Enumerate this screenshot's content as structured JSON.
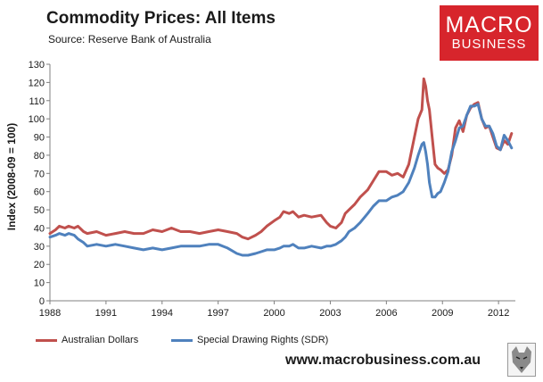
{
  "header": {
    "title": "Commodity Prices: All Items",
    "subtitle": "Source: Reserve Bank of Australia"
  },
  "logo": {
    "line1": "MACRO",
    "line2": "BUSINESS",
    "color": "#d7252c"
  },
  "website": "www.macrobusiness.com.au",
  "chart_data": {
    "type": "line",
    "title": "Commodity Prices: All Items",
    "ylabel": "Index (2008-09 = 100)",
    "xlabel": "",
    "ylim": [
      0,
      130
    ],
    "xlim": [
      1988,
      2012.9
    ],
    "yticks": [
      0,
      10,
      20,
      30,
      40,
      50,
      60,
      70,
      80,
      90,
      100,
      110,
      120,
      130
    ],
    "xticks": [
      1988,
      1991,
      1994,
      1997,
      2000,
      2003,
      2006,
      2009,
      2012
    ],
    "xtick_labels": [
      "1988",
      "1991",
      "1994",
      "1997",
      "2000",
      "2003",
      "2006",
      "2009",
      "2012"
    ],
    "grid": false,
    "legend_position": "bottom",
    "series": [
      {
        "name": "Australian Dollars",
        "color": "#c0504d",
        "x": [
          1988.0,
          1988.3,
          1988.5,
          1988.8,
          1989.0,
          1989.3,
          1989.5,
          1989.8,
          1990.0,
          1990.5,
          1991.0,
          1991.5,
          1992.0,
          1992.5,
          1993.0,
          1993.5,
          1994.0,
          1994.5,
          1995.0,
          1995.5,
          1996.0,
          1996.5,
          1997.0,
          1997.5,
          1998.0,
          1998.3,
          1998.6,
          1999.0,
          1999.3,
          1999.6,
          2000.0,
          2000.3,
          2000.5,
          2000.8,
          2001.0,
          2001.3,
          2001.6,
          2002.0,
          2002.5,
          2002.8,
          2003.0,
          2003.3,
          2003.6,
          2003.8,
          2004.0,
          2004.3,
          2004.6,
          2005.0,
          2005.3,
          2005.6,
          2006.0,
          2006.3,
          2006.6,
          2006.9,
          2007.2,
          2007.5,
          2007.7,
          2007.9,
          2008.0,
          2008.1,
          2008.2,
          2008.3,
          2008.45,
          2008.6,
          2008.75,
          2008.9,
          2009.1,
          2009.3,
          2009.5,
          2009.7,
          2009.9,
          2010.1,
          2010.3,
          2010.5,
          2010.7,
          2010.9,
          2011.1,
          2011.3,
          2011.5,
          2011.7,
          2011.9,
          2012.1,
          2012.3,
          2012.5,
          2012.7
        ],
        "y": [
          37,
          39,
          41,
          40,
          41,
          40,
          41,
          38,
          37,
          38,
          36,
          37,
          38,
          37,
          37,
          39,
          38,
          40,
          38,
          38,
          37,
          38,
          39,
          38,
          37,
          35,
          34,
          36,
          38,
          41,
          44,
          46,
          49,
          48,
          49,
          46,
          47,
          46,
          47,
          43,
          41,
          40,
          43,
          48,
          50,
          53,
          57,
          61,
          66,
          71,
          71,
          69,
          70,
          68,
          75,
          90,
          100,
          105,
          122,
          118,
          110,
          105,
          90,
          75,
          73,
          72,
          70,
          72,
          80,
          95,
          99,
          93,
          102,
          106,
          108,
          109,
          100,
          95,
          96,
          90,
          84,
          83,
          88,
          86,
          92
        ]
      },
      {
        "name": "Special Drawing Rights (SDR)",
        "color": "#4f81bd",
        "x": [
          1988.0,
          1988.3,
          1988.5,
          1988.8,
          1989.0,
          1989.3,
          1989.5,
          1989.8,
          1990.0,
          1990.5,
          1991.0,
          1991.5,
          1992.0,
          1992.5,
          1993.0,
          1993.5,
          1994.0,
          1994.5,
          1995.0,
          1995.5,
          1996.0,
          1996.5,
          1997.0,
          1997.5,
          1998.0,
          1998.3,
          1998.6,
          1999.0,
          1999.3,
          1999.6,
          2000.0,
          2000.3,
          2000.5,
          2000.8,
          2001.0,
          2001.3,
          2001.6,
          2002.0,
          2002.5,
          2002.8,
          2003.0,
          2003.3,
          2003.6,
          2003.8,
          2004.0,
          2004.3,
          2004.6,
          2005.0,
          2005.3,
          2005.6,
          2006.0,
          2006.3,
          2006.6,
          2006.9,
          2007.2,
          2007.5,
          2007.7,
          2007.9,
          2008.0,
          2008.1,
          2008.2,
          2008.3,
          2008.45,
          2008.6,
          2008.75,
          2008.9,
          2009.1,
          2009.3,
          2009.5,
          2009.7,
          2009.9,
          2010.1,
          2010.3,
          2010.5,
          2010.7,
          2010.9,
          2011.1,
          2011.3,
          2011.5,
          2011.7,
          2011.9,
          2012.1,
          2012.3,
          2012.5,
          2012.7
        ],
        "y": [
          35,
          36,
          37,
          36,
          37,
          36,
          34,
          32,
          30,
          31,
          30,
          31,
          30,
          29,
          28,
          29,
          28,
          29,
          30,
          30,
          30,
          31,
          31,
          29,
          26,
          25,
          25,
          26,
          27,
          28,
          28,
          29,
          30,
          30,
          31,
          29,
          29,
          30,
          29,
          30,
          30,
          31,
          33,
          35,
          38,
          40,
          43,
          48,
          52,
          55,
          55,
          57,
          58,
          60,
          65,
          73,
          80,
          86,
          87,
          82,
          75,
          65,
          57,
          57,
          59,
          60,
          65,
          71,
          82,
          88,
          95,
          96,
          102,
          107,
          107,
          108,
          100,
          96,
          96,
          92,
          85,
          83,
          91,
          88,
          84
        ]
      }
    ]
  }
}
